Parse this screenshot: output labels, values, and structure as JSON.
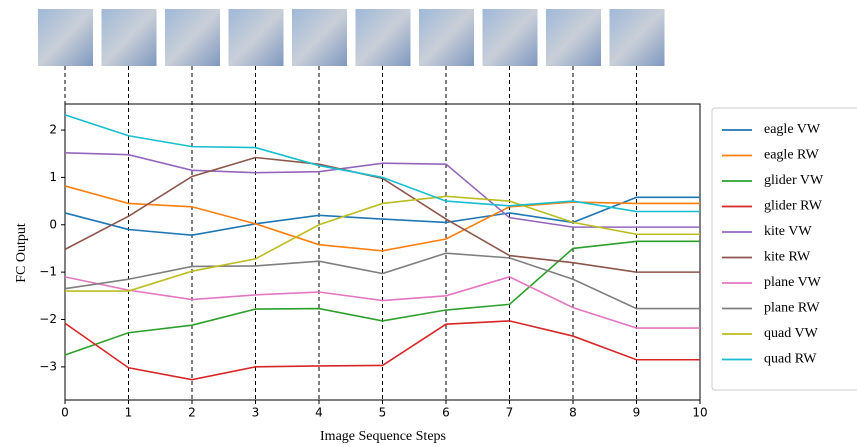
{
  "chart_data": {
    "type": "line",
    "x_label": "Image Sequence Steps",
    "y_label": "FC Output",
    "x": [
      0,
      1,
      2,
      3,
      4,
      5,
      6,
      7,
      8,
      9,
      10
    ],
    "xlim": [
      0,
      10
    ],
    "xticks": [
      0,
      1,
      2,
      3,
      4,
      5,
      6,
      7,
      8,
      9,
      10
    ],
    "ylim": [
      -3.7,
      2.55
    ],
    "yticks": [
      {
        "value": -3,
        "label": "−3"
      },
      {
        "value": -2,
        "label": "−2"
      },
      {
        "value": -1,
        "label": "−1"
      },
      0,
      1,
      2
    ],
    "legend": "right",
    "series": [
      {
        "name": "eagle VW",
        "color": "#1f77b4",
        "values": [
          0.25,
          -0.1,
          -0.22,
          0.02,
          0.2,
          0.12,
          0.05,
          0.25,
          0.05,
          0.58,
          0.58
        ]
      },
      {
        "name": "eagle RW",
        "color": "#ff7f0e",
        "values": [
          0.82,
          0.45,
          0.38,
          0.02,
          -0.42,
          -0.55,
          -0.3,
          0.38,
          0.48,
          0.45,
          0.45
        ]
      },
      {
        "name": "glider VW",
        "color": "#2ca02c",
        "values": [
          -2.75,
          -2.28,
          -2.12,
          -1.78,
          -1.77,
          -2.03,
          -1.8,
          -1.68,
          -0.5,
          -0.35,
          -0.35
        ]
      },
      {
        "name": "glider RW",
        "color": "#d62728",
        "values": [
          -2.08,
          -3.02,
          -3.27,
          -3.0,
          -2.98,
          -2.97,
          -2.1,
          -2.03,
          -2.35,
          -2.85,
          -2.85
        ]
      },
      {
        "name": "kite VW",
        "color": "#9467bd",
        "values": [
          1.52,
          1.48,
          1.15,
          1.1,
          1.12,
          1.3,
          1.28,
          0.15,
          -0.05,
          -0.05,
          -0.05
        ]
      },
      {
        "name": "kite RW",
        "color": "#8c564b",
        "values": [
          -0.52,
          0.18,
          1.02,
          1.42,
          1.28,
          0.98,
          0.12,
          -0.65,
          -0.8,
          -1.0,
          -1.0
        ]
      },
      {
        "name": "plane VW",
        "color": "#e377c2",
        "values": [
          -1.1,
          -1.38,
          -1.58,
          -1.48,
          -1.42,
          -1.6,
          -1.5,
          -1.1,
          -1.75,
          -2.18,
          -2.18
        ]
      },
      {
        "name": "plane RW",
        "color": "#7f7f7f",
        "values": [
          -1.35,
          -1.15,
          -0.88,
          -0.87,
          -0.77,
          -1.03,
          -0.6,
          -0.7,
          -1.15,
          -1.77,
          -1.77
        ]
      },
      {
        "name": "quad VW",
        "color": "#bcbd22",
        "values": [
          -1.4,
          -1.4,
          -0.98,
          -0.72,
          0.0,
          0.45,
          0.6,
          0.5,
          0.05,
          -0.2,
          -0.2
        ]
      },
      {
        "name": "quad RW",
        "color": "#17becf",
        "values": [
          2.32,
          1.88,
          1.65,
          1.63,
          1.25,
          1.0,
          0.5,
          0.4,
          0.5,
          0.28,
          0.28
        ]
      }
    ]
  }
}
